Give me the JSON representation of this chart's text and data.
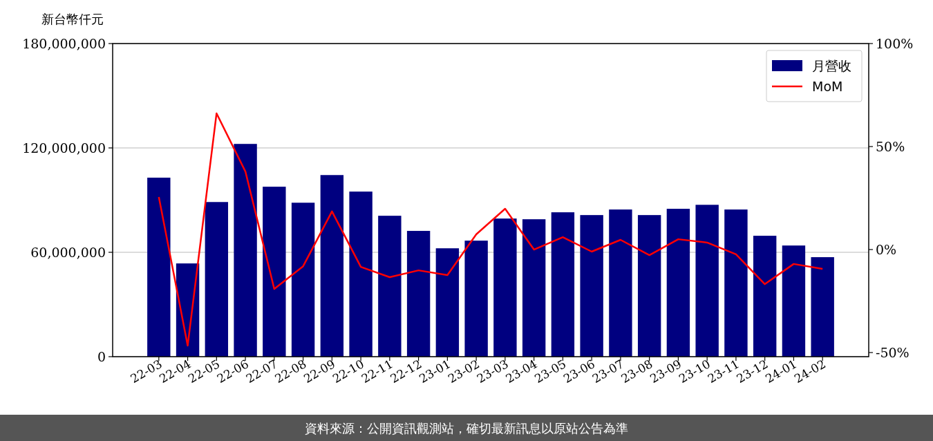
{
  "chart_data": {
    "type": "bar",
    "ylabel": "新台幣仟元",
    "categories": [
      "22-03",
      "22-04",
      "22-05",
      "22-06",
      "22-07",
      "22-08",
      "22-09",
      "22-10",
      "22-11",
      "22-12",
      "23-01",
      "23-02",
      "23-03",
      "23-04",
      "23-05",
      "23-06",
      "23-07",
      "23-08",
      "23-09",
      "23-10",
      "23-11",
      "23-12",
      "24-01",
      "24-02"
    ],
    "series": [
      {
        "name": "月營收",
        "color": "#000080",
        "values": [
          102900000,
          53600000,
          88900000,
          122300000,
          97700000,
          88500000,
          104400000,
          94900000,
          81000000,
          72300000,
          62300000,
          66700000,
          79400000,
          79000000,
          83000000,
          81400000,
          84600000,
          81400000,
          85000000,
          87300000,
          84600000,
          69500000,
          63900000,
          57200000
        ]
      },
      {
        "name": "MoM",
        "type": "line",
        "axis": "y2",
        "color": "#ff0000",
        "values": [
          25.5,
          -46.6,
          66.1,
          37.9,
          -19.1,
          -8.1,
          18.5,
          -8.4,
          -13.4,
          -10.1,
          -12.4,
          7.4,
          19.8,
          0,
          6,
          -1,
          4.7,
          -2.7,
          5,
          3.4,
          -2.3,
          -16.8,
          -7,
          -9.4
        ]
      }
    ],
    "ylim": [
      0,
      180000000
    ],
    "yticks": [
      {
        "value": 0,
        "label": "0"
      },
      {
        "value": 60000000,
        "label": "60,000,000"
      },
      {
        "value": 120000000,
        "label": "120,000,000"
      },
      {
        "value": 180000000,
        "label": "180,000,000"
      }
    ],
    "y2lim": [
      -52,
      100
    ],
    "y2ticks": [
      {
        "value": -50,
        "label": "-50%"
      },
      {
        "value": 0,
        "label": "0%"
      },
      {
        "value": 50,
        "label": "50%"
      },
      {
        "value": 100,
        "label": "100%"
      }
    ],
    "grid": "y",
    "legend": "top right",
    "marker": "none",
    "line_style": "solid",
    "annotations": [
      "資料來源：公開資訊觀測站，確切最新訊息以原站公告為準"
    ]
  }
}
